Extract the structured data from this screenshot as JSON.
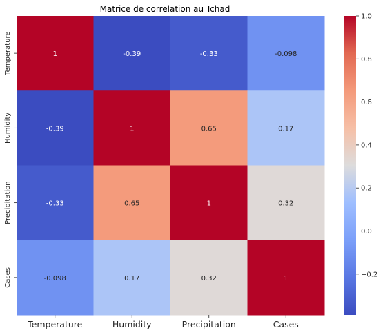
{
  "chart_data": {
    "type": "heatmap",
    "title": "Matrice de correlation au Tchad",
    "x_categories": [
      "Temperature",
      "Humidity",
      "Precipitation",
      "Cases"
    ],
    "y_categories": [
      "Temperature",
      "Humidity",
      "Precipitation",
      "Cases"
    ],
    "values": [
      [
        1,
        -0.39,
        -0.33,
        -0.098
      ],
      [
        -0.39,
        1,
        0.65,
        0.17
      ],
      [
        -0.33,
        0.65,
        1,
        0.32
      ],
      [
        -0.098,
        0.17,
        0.32,
        1
      ]
    ],
    "labels": [
      [
        "1",
        "-0.39",
        "-0.33",
        "-0.098"
      ],
      [
        "-0.39",
        "1",
        "0.65",
        "0.17"
      ],
      [
        "-0.33",
        "0.65",
        "1",
        "0.32"
      ],
      [
        "-0.098",
        "0.17",
        "0.32",
        "1"
      ]
    ],
    "colormap": "coolwarm",
    "vmin": -0.39,
    "vmax": 1.0,
    "colorbar_ticks": [
      "1.0",
      "0.8",
      "0.6",
      "0.4",
      "0.2",
      "0.0",
      "−0.2"
    ],
    "colorbar_tick_values": [
      1.0,
      0.8,
      0.6,
      0.4,
      0.2,
      0.0,
      -0.2
    ]
  }
}
